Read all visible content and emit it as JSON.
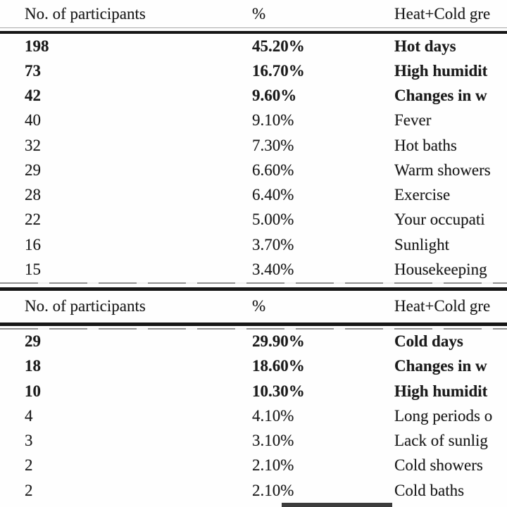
{
  "table": {
    "sections": [
      {
        "header": {
          "participants": "No. of participants",
          "percent": "%",
          "group": "Heat+Cold gre"
        },
        "rows": [
          {
            "count": "198",
            "pct": "45.20%",
            "label": "Hot days"
          },
          {
            "count": "73",
            "pct": "16.70%",
            "label": "High humidit"
          },
          {
            "count": "42",
            "pct": "9.60%",
            "label": "Changes in w"
          },
          {
            "count": "40",
            "pct": "9.10%",
            "label": "Fever"
          },
          {
            "count": "32",
            "pct": "7.30%",
            "label": "Hot baths"
          },
          {
            "count": "29",
            "pct": "6.60%",
            "label": "Warm showers"
          },
          {
            "count": "28",
            "pct": "6.40%",
            "label": "Exercise"
          },
          {
            "count": "22",
            "pct": "5.00%",
            "label": "Your occupati"
          },
          {
            "count": "16",
            "pct": "3.70%",
            "label": "Sunlight"
          },
          {
            "count": "15",
            "pct": "3.40%",
            "label": "Housekeeping"
          }
        ]
      },
      {
        "header": {
          "participants": "No. of participants",
          "percent": "%",
          "group": "Heat+Cold gre"
        },
        "rows": [
          {
            "count": "29",
            "pct": "29.90%",
            "label": "Cold days"
          },
          {
            "count": "18",
            "pct": "18.60%",
            "label": "Changes in w"
          },
          {
            "count": "10",
            "pct": "10.30%",
            "label": "High humidit"
          },
          {
            "count": "4",
            "pct": "4.10%",
            "label": "Long periods o"
          },
          {
            "count": "3",
            "pct": "3.10%",
            "label": "Lack of sunlig"
          },
          {
            "count": "2",
            "pct": "2.10%",
            "label": "Cold showers"
          },
          {
            "count": "2",
            "pct": "2.10%",
            "label": "Cold baths"
          }
        ]
      }
    ],
    "colors": {
      "text": "#1b1b1b",
      "rule_thick": "#161616",
      "rule_thin": "#a8a8a8",
      "background": "#fefefe"
    }
  }
}
